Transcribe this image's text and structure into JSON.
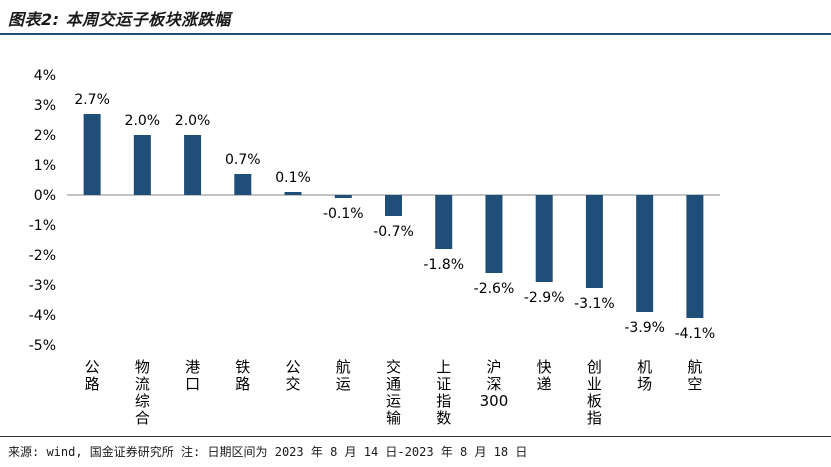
{
  "header": {
    "title": "图表2: 本周交运子板块涨跌幅"
  },
  "footer": {
    "source": "来源: wind, 国金证券研究所",
    "note": "注: 日期区间为 2023 年 8 月 14 日-2023 年 8 月 18 日"
  },
  "colors": {
    "bar": "#1f4e79",
    "rule": "#1f4e79"
  },
  "chart_data": {
    "type": "bar",
    "title": "本周交运子板块涨跌幅",
    "xlabel": "",
    "ylabel": "",
    "categories": [
      "公路",
      "物流综合",
      "港口",
      "铁路",
      "公交",
      "航运",
      "交通运输",
      "上证指数",
      "沪深300",
      "快递",
      "创业板指",
      "机场",
      "航空"
    ],
    "values": [
      2.7,
      2.0,
      2.0,
      0.7,
      0.1,
      -0.1,
      -0.7,
      -1.8,
      -2.6,
      -2.9,
      -3.1,
      -3.9,
      -4.1
    ],
    "value_labels": [
      "2.7%",
      "2.0%",
      "2.0%",
      "0.7%",
      "0.1%",
      "-0.1%",
      "-0.7%",
      "-1.8%",
      "-2.6%",
      "-2.9%",
      "-3.1%",
      "-3.9%",
      "-4.1%"
    ],
    "ylim": [
      -5,
      4
    ],
    "yticks": [
      4,
      3,
      2,
      1,
      0,
      -1,
      -2,
      -3,
      -4,
      -5
    ],
    "ytick_labels": [
      "4%",
      "3%",
      "2%",
      "1%",
      "0%",
      "-1%",
      "-2%",
      "-3%",
      "-4%",
      "-5%"
    ],
    "grid": false,
    "legend": "none"
  }
}
